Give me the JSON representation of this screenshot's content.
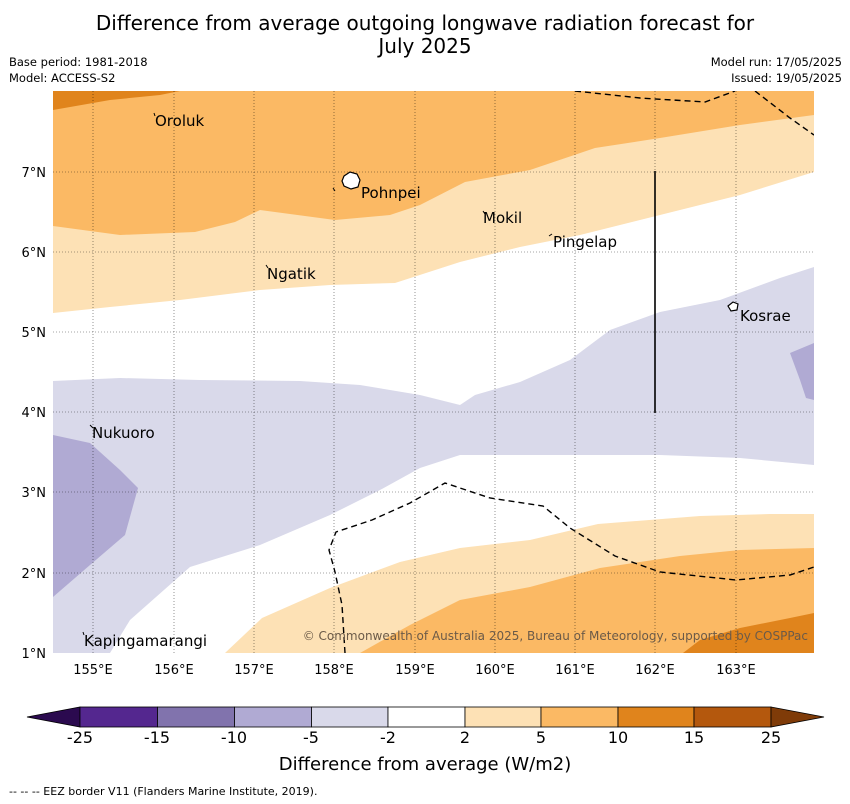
{
  "header": {
    "title_line1": "Difference from average outgoing longwave radiation forecast for",
    "title_line2": "July 2025",
    "base_period": "Base period: 1981-2018",
    "model": "Model: ACCESS-S2",
    "model_run": "Model run: 17/05/2025",
    "issued": "Issued: 19/05/2025"
  },
  "map": {
    "lon_ticks": [
      "155°E",
      "156°E",
      "157°E",
      "158°E",
      "159°E",
      "160°E",
      "161°E",
      "162°E",
      "163°E"
    ],
    "lat_ticks": [
      "7°N",
      "6°N",
      "5°N",
      "4°N",
      "3°N",
      "2°N",
      "1°N"
    ],
    "places": [
      "Oroluk",
      "Pohnpei",
      "Mokil",
      "Pingelap",
      "Ngatik",
      "Kosrae",
      "Nukuoro",
      "Kapingamarangi"
    ],
    "copyright": "© Commonwealth of Australia 2025, Bureau of Meteorology, supported by COSPPac"
  },
  "colorbar": {
    "colors": [
      "#2b0a4f",
      "#54278f",
      "#8173ad",
      "#b0aad3",
      "#d9d9ea",
      "#ffffff",
      "#fde1b5",
      "#fbb964",
      "#e0841c",
      "#b4580d",
      "#7f3b08"
    ],
    "labels": [
      "-25",
      "-15",
      "-10",
      "-5",
      "-2",
      "2",
      "5",
      "10",
      "15",
      "25"
    ],
    "title": "Difference from average (W/m2)"
  },
  "footer": {
    "eez": "--  --  -- EEZ border V11 (Flanders Marine Institute, 2019)."
  }
}
